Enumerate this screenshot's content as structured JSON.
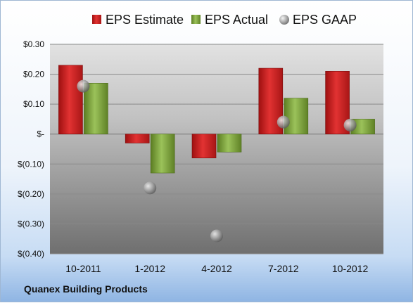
{
  "chart_data": {
    "type": "bar",
    "categories": [
      "10-2011",
      "1-2012",
      "4-2012",
      "7-2012",
      "10-2012"
    ],
    "series": [
      {
        "name": "EPS Estimate",
        "type": "bar",
        "values": [
          0.23,
          -0.03,
          -0.08,
          0.22,
          0.21
        ]
      },
      {
        "name": "EPS Actual",
        "type": "bar",
        "values": [
          0.17,
          -0.13,
          -0.06,
          0.12,
          0.05
        ]
      },
      {
        "name": "EPS GAAP",
        "type": "scatter",
        "values": [
          0.16,
          -0.18,
          -0.34,
          0.04,
          0.03
        ]
      }
    ],
    "ylim": [
      -0.4,
      0.3
    ],
    "yticks": [
      0.3,
      0.2,
      0.1,
      0,
      -0.1,
      -0.2,
      -0.3,
      -0.4
    ],
    "ytick_labels": [
      "$0.30",
      "$0.20",
      "$0.10",
      "$-",
      "$(0.10)",
      "$(0.20)",
      "$(0.30)",
      "$(0.40)"
    ],
    "legend_position": "top",
    "grid": true
  },
  "footer": {
    "company": "Quanex Building Products"
  },
  "colors": {
    "estimate": "#d42a2a",
    "actual": "#7fa33c",
    "gaap": "#9a9a9a"
  }
}
